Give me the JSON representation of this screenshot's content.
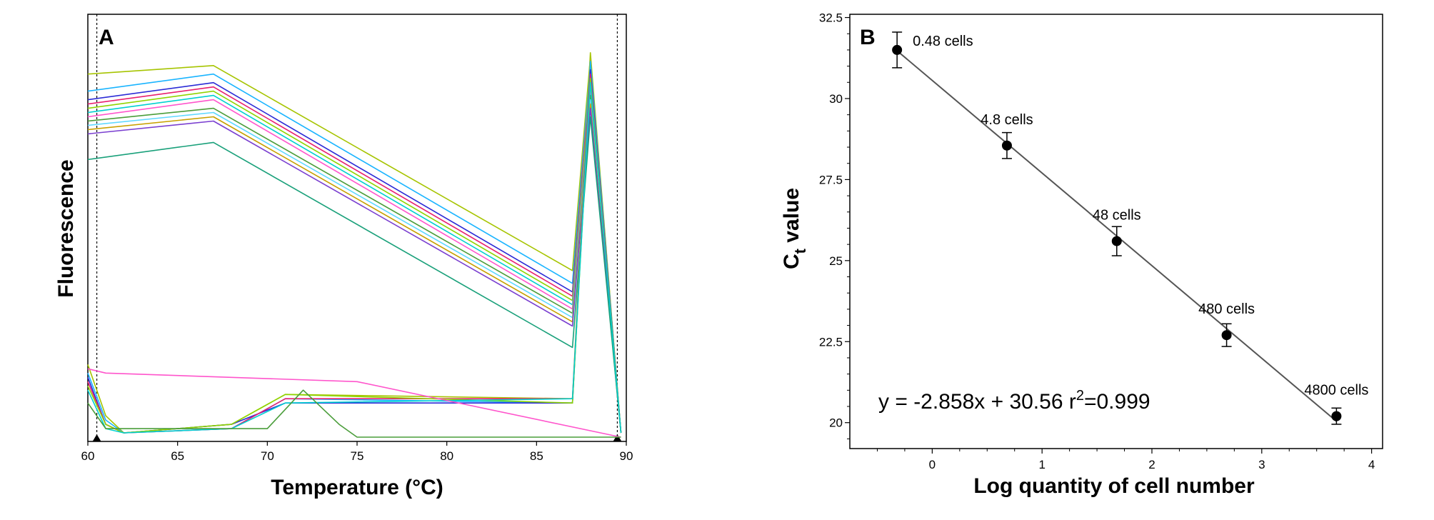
{
  "panel_a": {
    "letter": "A",
    "xlabel": "Temperature (°C)",
    "ylabel": "Fluorescence"
  },
  "panel_b": {
    "letter": "B",
    "xlabel": "Log quantity of cell number",
    "ylabel_main": "C",
    "ylabel_sub": "t",
    "ylabel_rest": " value",
    "equation": "y = -2.858x + 30.56   r",
    "r2_sup": "2",
    "r2_value": "=0.999"
  },
  "colors": {
    "melt_palette": [
      "#a6c400",
      "#19b4ff",
      "#2b2bd6",
      "#e8206f",
      "#8fd400",
      "#00d0d0",
      "#ff55cc",
      "#4a9d3a",
      "#5fd8ff",
      "#c8a000",
      "#7a3fd0",
      "#19a07a"
    ],
    "fit_line": "#555555"
  },
  "chart_data": [
    {
      "type": "line",
      "title": "",
      "panel": "A",
      "xlabel": "Temperature (°C)",
      "ylabel": "Fluorescence",
      "xlim": [
        60,
        90
      ],
      "ylim": [
        0,
        100
      ],
      "x_ticks": [
        60,
        65,
        70,
        75,
        80,
        85,
        90
      ],
      "y_ticks": [],
      "marker_lines_x": [
        60.5,
        89.5
      ],
      "series": [
        {
          "values": [
            [
              60,
              86
            ],
            [
              67,
              88
            ],
            [
              87,
              40
            ],
            [
              88,
              90
            ],
            [
              89.7,
              2
            ]
          ]
        },
        {
          "values": [
            [
              60,
              82
            ],
            [
              67,
              86
            ],
            [
              87,
              37
            ],
            [
              88,
              88
            ],
            [
              89.7,
              2
            ]
          ]
        },
        {
          "values": [
            [
              60,
              80
            ],
            [
              67,
              84
            ],
            [
              87,
              35
            ],
            [
              88,
              85
            ],
            [
              89.7,
              2
            ]
          ]
        },
        {
          "values": [
            [
              60,
              79
            ],
            [
              67,
              83
            ],
            [
              87,
              34
            ],
            [
              88,
              86
            ],
            [
              89.7,
              2
            ]
          ]
        },
        {
          "values": [
            [
              60,
              78
            ],
            [
              67,
              82
            ],
            [
              87,
              33
            ],
            [
              88,
              84
            ],
            [
              89.7,
              2
            ]
          ]
        },
        {
          "values": [
            [
              60,
              77
            ],
            [
              67,
              81
            ],
            [
              87,
              32
            ],
            [
              88,
              83
            ],
            [
              89.7,
              2
            ]
          ]
        },
        {
          "values": [
            [
              60,
              76
            ],
            [
              67,
              80
            ],
            [
              87,
              31
            ],
            [
              88,
              82
            ],
            [
              89.7,
              2
            ]
          ]
        },
        {
          "values": [
            [
              60,
              75
            ],
            [
              67,
              78
            ],
            [
              87,
              30
            ],
            [
              88,
              81
            ],
            [
              89.7,
              2
            ]
          ]
        },
        {
          "values": [
            [
              60,
              74
            ],
            [
              67,
              77
            ],
            [
              87,
              29
            ],
            [
              88,
              80
            ],
            [
              89.7,
              2
            ]
          ]
        },
        {
          "values": [
            [
              60,
              73
            ],
            [
              67,
              76
            ],
            [
              87,
              28
            ],
            [
              88,
              79
            ],
            [
              89.7,
              2
            ]
          ]
        },
        {
          "values": [
            [
              60,
              72
            ],
            [
              67,
              75
            ],
            [
              87,
              27
            ],
            [
              88,
              78
            ],
            [
              89.7,
              2
            ]
          ]
        },
        {
          "values": [
            [
              60,
              66
            ],
            [
              67,
              70
            ],
            [
              87,
              22
            ],
            [
              88,
              76
            ],
            [
              89.7,
              2
            ]
          ]
        },
        {
          "values": [
            [
              60,
              18
            ],
            [
              61,
              6
            ],
            [
              62,
              2
            ],
            [
              68,
              4
            ],
            [
              71,
              11
            ],
            [
              87,
              10
            ],
            [
              88,
              91
            ],
            [
              89.7,
              2
            ]
          ]
        },
        {
          "values": [
            [
              60,
              16
            ],
            [
              61,
              5
            ],
            [
              62,
              2
            ],
            [
              68,
              3
            ],
            [
              71,
              10
            ],
            [
              87,
              9
            ],
            [
              88,
              89
            ],
            [
              89.7,
              2
            ]
          ]
        },
        {
          "values": [
            [
              60,
              15
            ],
            [
              61,
              4
            ],
            [
              62,
              2
            ],
            [
              68,
              4
            ],
            [
              71,
              9
            ],
            [
              87,
              9
            ],
            [
              88,
              87
            ],
            [
              89.7,
              2
            ]
          ]
        },
        {
          "values": [
            [
              60,
              14
            ],
            [
              61,
              4
            ],
            [
              62,
              2
            ],
            [
              68,
              3
            ],
            [
              71,
              10
            ],
            [
              87,
              10
            ],
            [
              88,
              86
            ],
            [
              89.7,
              2
            ]
          ]
        },
        {
          "values": [
            [
              60,
              13
            ],
            [
              61,
              4
            ],
            [
              62,
              2
            ],
            [
              68,
              4
            ],
            [
              71,
              11
            ],
            [
              87,
              9
            ],
            [
              88,
              85
            ],
            [
              89.7,
              2
            ]
          ]
        },
        {
          "values": [
            [
              60,
              12
            ],
            [
              61,
              3
            ],
            [
              62,
              2
            ],
            [
              68,
              3
            ],
            [
              71,
              9
            ],
            [
              87,
              10
            ],
            [
              88,
              84
            ],
            [
              89.7,
              2
            ]
          ]
        },
        {
          "values": [
            [
              60,
              17
            ],
            [
              61,
              16
            ],
            [
              75,
              14
            ],
            [
              89.7,
              1
            ]
          ]
        },
        {
          "values": [
            [
              60,
              9
            ],
            [
              61,
              3
            ],
            [
              70,
              3
            ],
            [
              72,
              12
            ],
            [
              74,
              4
            ],
            [
              75,
              1
            ],
            [
              89.7,
              1
            ]
          ]
        }
      ]
    },
    {
      "type": "scatter",
      "title": "",
      "panel": "B",
      "xlabel": "Log quantity of cell number",
      "ylabel": "Ct value",
      "xlim": [
        -0.75,
        4.1
      ],
      "ylim": [
        19.2,
        32.6
      ],
      "x_ticks": [
        0,
        1,
        2,
        3,
        4
      ],
      "y_ticks": [
        20,
        22.5,
        25,
        27.5,
        30,
        32.5
      ],
      "y_tick_labels": [
        "20",
        "22.5",
        "25",
        "27.5",
        "30",
        "32.5"
      ],
      "x": [
        -0.32,
        0.68,
        1.68,
        2.68,
        3.68
      ],
      "y": [
        31.5,
        28.55,
        25.6,
        22.7,
        20.2
      ],
      "error": [
        0.55,
        0.4,
        0.45,
        0.35,
        0.25
      ],
      "point_labels": [
        "0.48 cells",
        "4.8 cells",
        "48 cells",
        "480 cells",
        "4800 cells"
      ],
      "fit": {
        "slope": -2.858,
        "intercept": 30.56,
        "r2": 0.999
      }
    }
  ]
}
